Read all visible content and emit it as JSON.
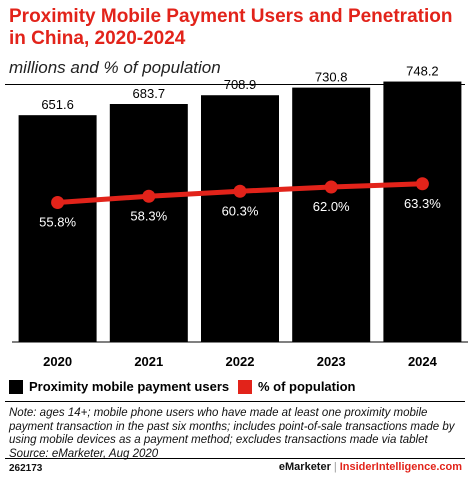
{
  "chart_data": {
    "type": "bar",
    "title": "Proximity Mobile Payment Users and Penetration in China, 2020-2024",
    "subtitle": "millions and % of population",
    "categories": [
      "2020",
      "2021",
      "2022",
      "2023",
      "2024"
    ],
    "series": [
      {
        "name": "Proximity mobile payment users",
        "type": "bar",
        "values": [
          651.6,
          683.7,
          708.9,
          730.8,
          748.2
        ],
        "labels": [
          "651.6",
          "683.7",
          "708.9",
          "730.8",
          "748.2"
        ],
        "color": "#000000"
      },
      {
        "name": "% of population",
        "type": "line",
        "values": [
          55.8,
          58.3,
          60.3,
          62.0,
          63.3
        ],
        "labels": [
          "55.8%",
          "58.3%",
          "60.3%",
          "62.0%",
          "63.3%"
        ],
        "color": "#e2231a"
      }
    ],
    "bar_ylim": [
      0,
      790
    ],
    "line_ylim": [
      0,
      110
    ],
    "grid": false,
    "legend_position": "bottom-left"
  },
  "note": "Note: ages 14+; mobile phone users who have made at least one proximity mobile payment transaction in the past six months; includes point-of-sale transactions made by using mobile devices as a payment method; excludes transactions made via tablet",
  "source": "Source: eMarketer, Aug 2020",
  "footer": {
    "id": "262173",
    "brand": "eMarketer",
    "separator": "|",
    "site": "InsiderIntelligence.com"
  },
  "colors": {
    "accent": "#e2231a",
    "bar": "#000000"
  }
}
